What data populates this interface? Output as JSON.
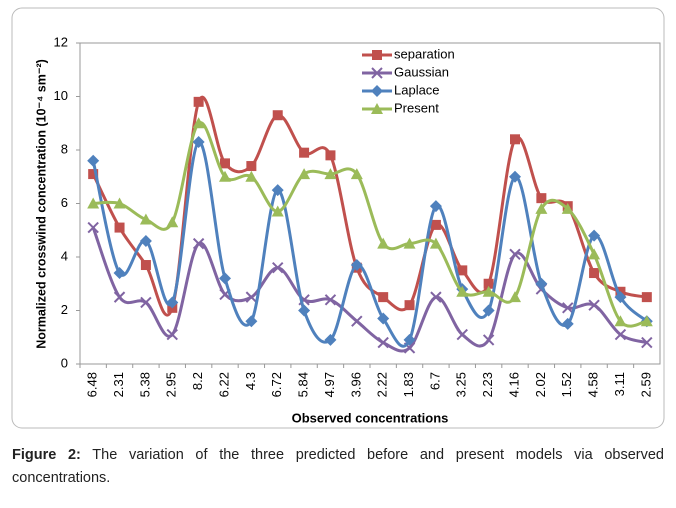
{
  "chart_data": {
    "type": "line",
    "y_label": "Normalized crosswind concentration (10⁻⁴ sm⁻²)",
    "x_label": "Observed concentrations",
    "categories": [
      "6.48",
      "2.31",
      "5.38",
      "2.95",
      "8.2",
      "6.22",
      "4.3",
      "6.72",
      "5.84",
      "4.97",
      "3.96",
      "2.22",
      "1.83",
      "6.7",
      "3.25",
      "2.23",
      "4.16",
      "2.02",
      "1.52",
      "4.58",
      "3.11",
      "2.59"
    ],
    "series": [
      {
        "name": "separation",
        "color": "#c0504d",
        "marker": "square",
        "values": [
          7.1,
          5.1,
          3.7,
          2.1,
          9.8,
          7.5,
          7.4,
          9.3,
          7.9,
          7.8,
          3.6,
          2.5,
          2.2,
          5.2,
          3.5,
          3.0,
          8.4,
          6.2,
          5.9,
          3.4,
          2.7,
          2.5
        ]
      },
      {
        "name": "Gaussian",
        "color": "#8064a2",
        "marker": "x",
        "values": [
          5.1,
          2.5,
          2.3,
          1.1,
          4.5,
          2.6,
          2.5,
          3.6,
          2.4,
          2.4,
          1.6,
          0.8,
          0.6,
          2.5,
          1.1,
          0.9,
          4.1,
          2.8,
          2.1,
          2.2,
          1.1,
          0.8
        ]
      },
      {
        "name": "Laplace",
        "color": "#4f81bd",
        "marker": "diamond",
        "values": [
          7.6,
          3.4,
          4.6,
          2.3,
          8.3,
          3.2,
          1.6,
          6.5,
          2.0,
          0.9,
          3.7,
          1.7,
          0.9,
          5.9,
          2.8,
          2.0,
          7.0,
          3.0,
          1.5,
          4.8,
          2.5,
          1.6
        ]
      },
      {
        "name": "Present",
        "color": "#9bbb59",
        "marker": "triangle",
        "values": [
          6.0,
          6.0,
          5.4,
          5.3,
          9.0,
          7.0,
          7.0,
          5.7,
          7.1,
          7.1,
          7.1,
          4.5,
          4.5,
          4.5,
          2.7,
          2.7,
          2.5,
          5.8,
          5.8,
          4.1,
          1.6,
          1.6
        ]
      }
    ],
    "ylim": [
      0,
      12
    ],
    "yticks": [
      0,
      2,
      4,
      6,
      8,
      10,
      12
    ],
    "grid": false,
    "smooth": true
  },
  "caption": {
    "label": "Figure 2:",
    "text": "The variation of the three predicted before and present models via observed concentrations."
  }
}
